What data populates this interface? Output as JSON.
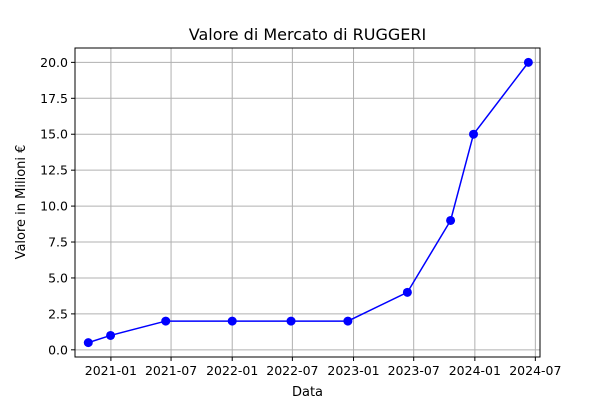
{
  "chart_data": {
    "type": "line",
    "title": "Valore di Mercato di RUGGERI",
    "xlabel": "Data",
    "ylabel": "Valore in Milioni €",
    "x_type": "date",
    "xlim": [
      "2020-09-15",
      "2024-07-15"
    ],
    "ylim": [
      -0.5,
      21.0
    ],
    "x_ticks": [
      {
        "value": "2021-01-01",
        "label": "2021-01"
      },
      {
        "value": "2021-07-01",
        "label": "2021-07"
      },
      {
        "value": "2022-01-01",
        "label": "2022-01"
      },
      {
        "value": "2022-07-01",
        "label": "2022-07"
      },
      {
        "value": "2023-01-01",
        "label": "2023-01"
      },
      {
        "value": "2023-07-01",
        "label": "2023-07"
      },
      {
        "value": "2024-01-01",
        "label": "2024-01"
      },
      {
        "value": "2024-07-01",
        "label": "2024-07"
      }
    ],
    "y_ticks": [
      {
        "value": 0,
        "label": "0.0"
      },
      {
        "value": 2.5,
        "label": "2.5"
      },
      {
        "value": 5,
        "label": "5.0"
      },
      {
        "value": 7.5,
        "label": "7.5"
      },
      {
        "value": 10,
        "label": "10.0"
      },
      {
        "value": 12.5,
        "label": "12.5"
      },
      {
        "value": 15,
        "label": "15.0"
      },
      {
        "value": 17.5,
        "label": "17.5"
      },
      {
        "value": 20,
        "label": "20.0"
      }
    ],
    "grid": true,
    "series": [
      {
        "color": "#0000ff",
        "marker": "circle",
        "points": [
          {
            "x": "2020-10-25",
            "y": 0.5
          },
          {
            "x": "2020-12-31",
            "y": 1.0
          },
          {
            "x": "2021-06-15",
            "y": 2.0
          },
          {
            "x": "2022-01-01",
            "y": 2.0
          },
          {
            "x": "2022-06-27",
            "y": 2.0
          },
          {
            "x": "2022-12-15",
            "y": 2.0
          },
          {
            "x": "2023-06-12",
            "y": 4.0
          },
          {
            "x": "2023-10-20",
            "y": 9.0
          },
          {
            "x": "2023-12-28",
            "y": 15.0
          },
          {
            "x": "2024-06-10",
            "y": 20.0
          }
        ]
      }
    ]
  }
}
